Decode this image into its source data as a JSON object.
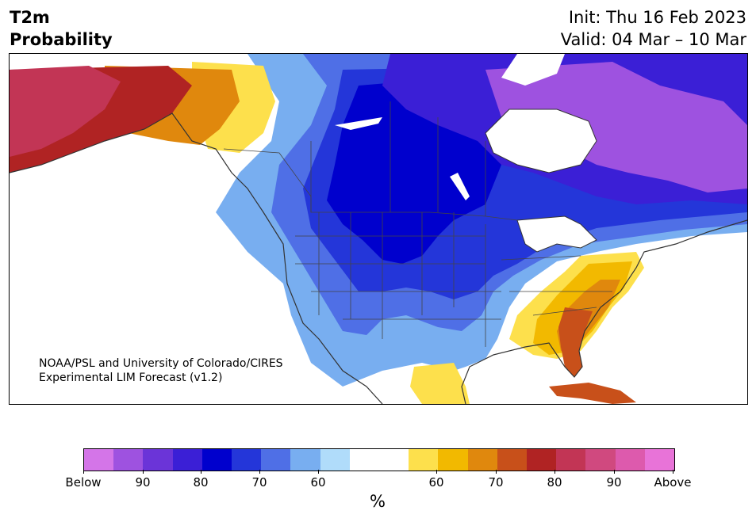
{
  "header": {
    "variable": "T2m",
    "quantity": "Probability",
    "init": "Init: Thu 16 Feb 2023",
    "valid": "Valid: 04 Mar – 10 Mar"
  },
  "credit": {
    "line1": "NOAA/PSL and University of Colorado/CIRES",
    "line2": "Experimental LIM Forecast (v1.2)"
  },
  "colorbar": {
    "colors": [
      "#d475e8",
      "#9e52e0",
      "#6b34d8",
      "#3b1fd6",
      "#0000cd",
      "#2436d9",
      "#4f6fe6",
      "#78aef0",
      "#b0dcfa",
      "#ffffff",
      "#ffffff",
      "#fde04c",
      "#f2b900",
      "#e0880d",
      "#c8501a",
      "#b02323",
      "#c23555",
      "#d0497f",
      "#dd5aad",
      "#e873d8"
    ],
    "tick_labels": [
      "Below",
      "90",
      "80",
      "70",
      "60",
      "60",
      "70",
      "80",
      "90",
      "Above"
    ],
    "unit": "%"
  },
  "map": {
    "region": "North America",
    "categories": {
      "below_90": "#9e52e0",
      "below_80": "#3b1fd6",
      "below_70": "#2436d9",
      "below_60": "#78aef0",
      "near_normal": "#ffffff",
      "above_60": "#fde04c",
      "above_70": "#e0880d",
      "above_80": "#b02323",
      "above_90": "#c23555"
    }
  }
}
